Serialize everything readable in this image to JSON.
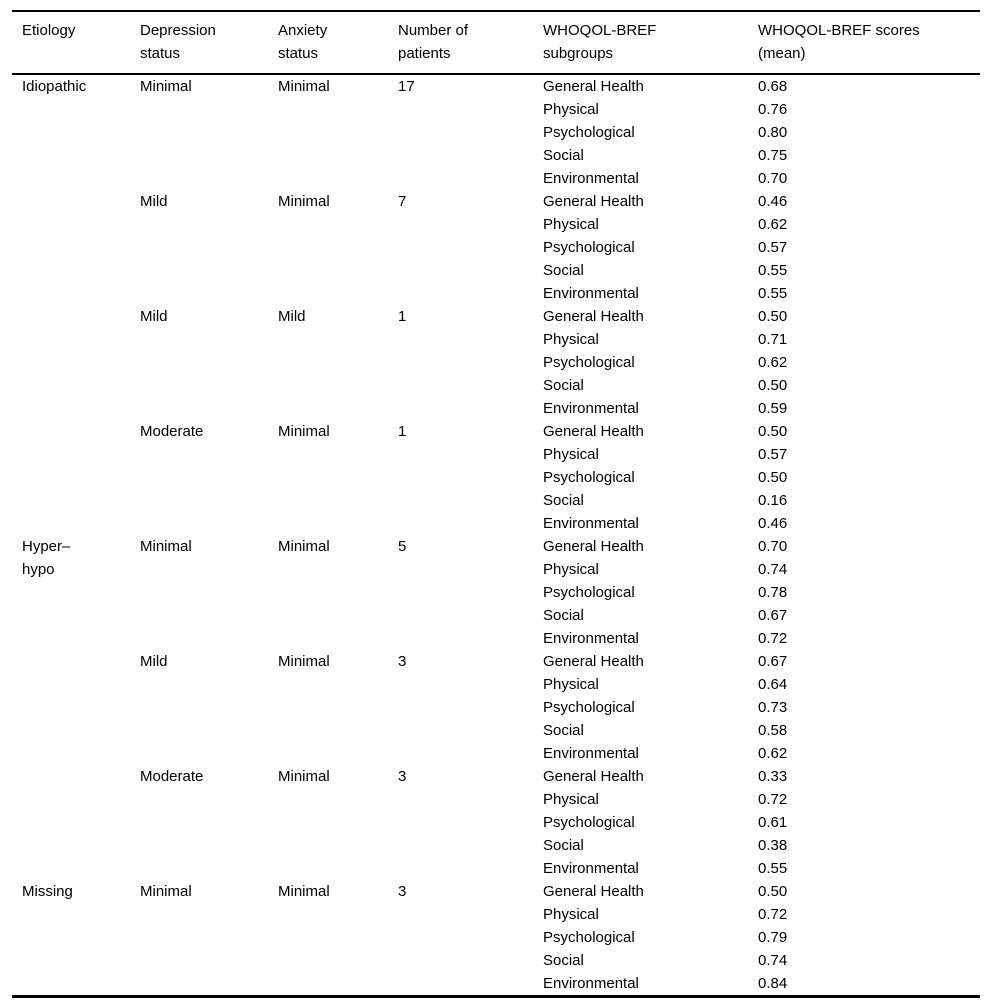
{
  "page": {
    "background_color": "#ffffff",
    "text_color": "#000000",
    "rule_color": "#000000"
  },
  "table": {
    "headers": [
      "Etiology",
      "Depression\nstatus",
      "Anxiety\nstatus",
      "Number of\npatients",
      "WHOQOL-BREF\nsubgroups",
      "WHOQOL-BREF scores\n(mean)"
    ],
    "subgroup_names": [
      "General Health",
      "Physical",
      "Psychological",
      "Social",
      "Environmental"
    ],
    "groups": [
      {
        "etiology": "Idiopathic",
        "combos": [
          {
            "depression": "Minimal",
            "anxiety": "Minimal",
            "patients": "17",
            "scores": [
              "0.68",
              "0.76",
              "0.80",
              "0.75",
              "0.70"
            ]
          },
          {
            "depression": "Mild",
            "anxiety": "Minimal",
            "patients": "7",
            "scores": [
              "0.46",
              "0.62",
              "0.57",
              "0.55",
              "0.55"
            ]
          },
          {
            "depression": "Mild",
            "anxiety": "Mild",
            "patients": "1",
            "scores": [
              "0.50",
              "0.71",
              "0.62",
              "0.50",
              "0.59"
            ]
          },
          {
            "depression": "Moderate",
            "anxiety": "Minimal",
            "patients": "1",
            "scores": [
              "0.50",
              "0.57",
              "0.50",
              "0.16",
              "0.46"
            ]
          }
        ]
      },
      {
        "etiology": "Hyper–\nhypo",
        "combos": [
          {
            "depression": "Minimal",
            "anxiety": "Minimal",
            "patients": "5",
            "scores": [
              "0.70",
              "0.74",
              "0.78",
              "0.67",
              "0.72"
            ]
          },
          {
            "depression": "Mild",
            "anxiety": "Minimal",
            "patients": "3",
            "scores": [
              "0.67",
              "0.64",
              "0.73",
              "0.58",
              "0.62"
            ]
          },
          {
            "depression": "Moderate",
            "anxiety": "Minimal",
            "patients": "3",
            "scores": [
              "0.33",
              "0.72",
              "0.61",
              "0.38",
              "0.55"
            ]
          }
        ]
      },
      {
        "etiology": "Missing",
        "combos": [
          {
            "depression": "Minimal",
            "anxiety": "Minimal",
            "patients": "3",
            "scores": [
              "0.50",
              "0.72",
              "0.79",
              "0.74",
              "0.84"
            ]
          }
        ]
      }
    ]
  }
}
